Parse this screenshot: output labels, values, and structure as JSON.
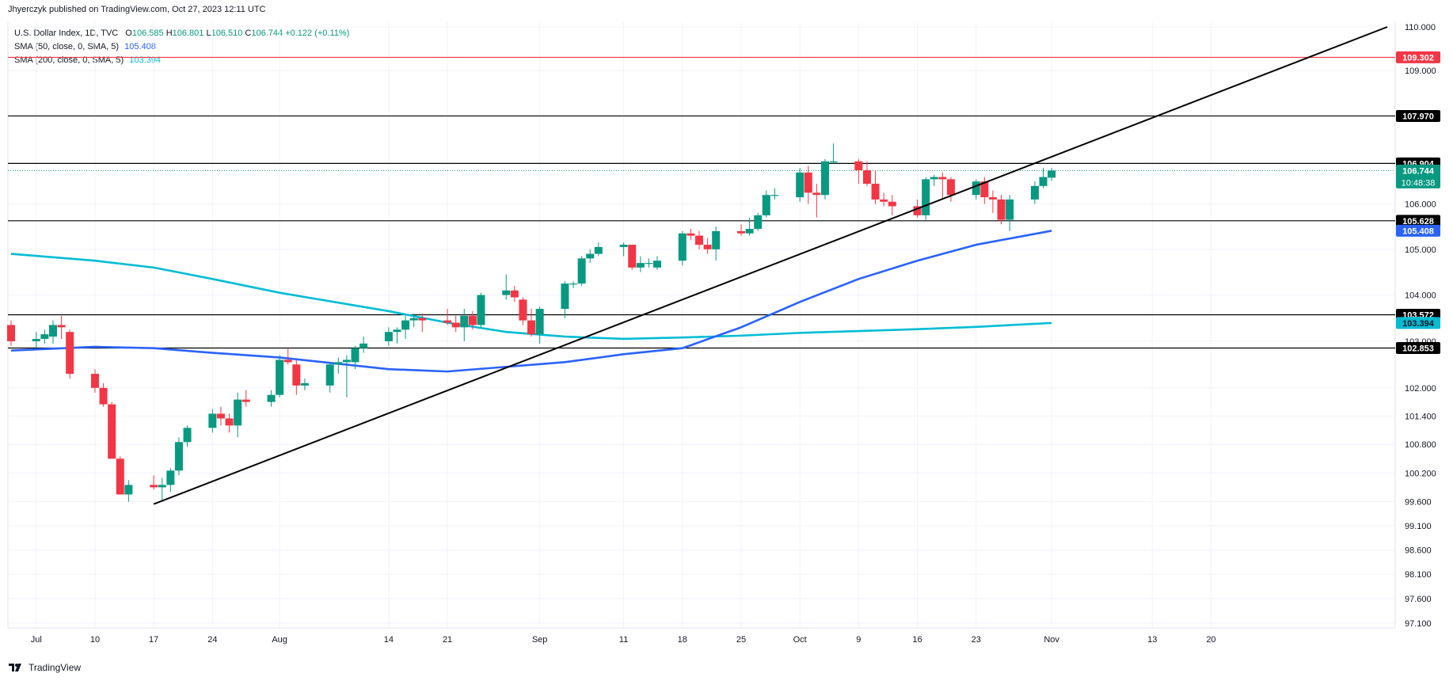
{
  "header": {
    "publisher": "Jhyerczyk published on TradingView.com, Oct 27, 2023 12:11 UTC"
  },
  "legend": {
    "instrument": "U.S. Dollar Index, 1D, TVC",
    "ohlc": {
      "open_label": "O",
      "open": "106.585",
      "high_label": "H",
      "high": "106.801",
      "low_label": "L",
      "low": "106.510",
      "close_label": "C",
      "close": "106.744",
      "change": "+0.122 (+0.11%)"
    },
    "sma50": {
      "label": "SMA (50, close, 0, SMA, 5)",
      "value": "105.408",
      "color": "#2962ff"
    },
    "sma200": {
      "label": "SMA (200, close, 0, SMA, 5)",
      "value": "103.394",
      "color": "#00bcd4"
    }
  },
  "footer": {
    "brand": "TradingView"
  },
  "colors": {
    "up": "#089981",
    "down": "#f23645",
    "sma50": "#2962ff",
    "sma200": "#00bcd4",
    "hline": "#000000",
    "red_hline": "#f23645",
    "grid": "#f0f3fa",
    "axis_text": "#131722"
  },
  "chart_data": {
    "type": "candlestick",
    "y_scale": "log",
    "ylim": [
      97.1,
      110.0
    ],
    "price_ticks": [
      "110.000",
      "109.000",
      "106.000",
      "105.000",
      "104.000",
      "103.000",
      "102.000",
      "101.400",
      "100.800",
      "100.200",
      "99.600",
      "99.100",
      "98.600",
      "98.100",
      "97.600",
      "97.100"
    ],
    "x_tick_labels": [
      "Jul",
      "10",
      "17",
      "24",
      "Aug",
      "14",
      "21",
      "Sep",
      "11",
      "18",
      "25",
      "Oct",
      "9",
      "16",
      "23",
      "Nov",
      "13",
      "20"
    ],
    "x_tick_dates": [
      "2023-07-03",
      "2023-07-10",
      "2023-07-17",
      "2023-07-24",
      "2023-08-01",
      "2023-08-14",
      "2023-08-21",
      "2023-09-01",
      "2023-09-11",
      "2023-09-18",
      "2023-09-25",
      "2023-10-02",
      "2023-10-09",
      "2023-10-16",
      "2023-10-23",
      "2023-11-01",
      "2023-11-13",
      "2023-11-20"
    ],
    "candles": [
      {
        "date": "2023-06-30",
        "o": 103.35,
        "h": 103.45,
        "l": 102.9,
        "c": 103.0
      },
      {
        "date": "2023-07-03",
        "o": 103.0,
        "h": 103.2,
        "l": 102.85,
        "c": 103.05
      },
      {
        "date": "2023-07-04",
        "o": 103.05,
        "h": 103.25,
        "l": 102.95,
        "c": 103.15
      },
      {
        "date": "2023-07-05",
        "o": 103.1,
        "h": 103.45,
        "l": 102.95,
        "c": 103.35
      },
      {
        "date": "2023-07-06",
        "o": 103.35,
        "h": 103.55,
        "l": 103.05,
        "c": 103.3
      },
      {
        "date": "2023-07-07",
        "o": 103.2,
        "h": 103.25,
        "l": 102.2,
        "c": 102.3
      },
      {
        "date": "2023-07-10",
        "o": 102.3,
        "h": 102.4,
        "l": 101.9,
        "c": 102.0
      },
      {
        "date": "2023-07-11",
        "o": 102.0,
        "h": 102.1,
        "l": 101.6,
        "c": 101.65
      },
      {
        "date": "2023-07-12",
        "o": 101.65,
        "h": 101.7,
        "l": 100.5,
        "c": 100.5
      },
      {
        "date": "2023-07-13",
        "o": 100.5,
        "h": 100.55,
        "l": 99.75,
        "c": 99.75
      },
      {
        "date": "2023-07-14",
        "o": 99.75,
        "h": 100.05,
        "l": 99.6,
        "c": 99.95
      },
      {
        "date": "2023-07-17",
        "o": 99.95,
        "h": 100.15,
        "l": 99.85,
        "c": 99.9
      },
      {
        "date": "2023-07-18",
        "o": 99.9,
        "h": 100.1,
        "l": 99.6,
        "c": 99.95
      },
      {
        "date": "2023-07-19",
        "o": 99.95,
        "h": 100.3,
        "l": 99.8,
        "c": 100.25
      },
      {
        "date": "2023-07-20",
        "o": 100.25,
        "h": 100.95,
        "l": 100.15,
        "c": 100.85
      },
      {
        "date": "2023-07-21",
        "o": 100.85,
        "h": 101.2,
        "l": 100.75,
        "c": 101.15
      },
      {
        "date": "2023-07-24",
        "o": 101.15,
        "h": 101.55,
        "l": 101.05,
        "c": 101.45
      },
      {
        "date": "2023-07-25",
        "o": 101.45,
        "h": 101.6,
        "l": 101.2,
        "c": 101.35
      },
      {
        "date": "2023-07-26",
        "o": 101.35,
        "h": 101.45,
        "l": 101.05,
        "c": 101.2
      },
      {
        "date": "2023-07-27",
        "o": 101.2,
        "h": 101.9,
        "l": 100.95,
        "c": 101.75
      },
      {
        "date": "2023-07-28",
        "o": 101.75,
        "h": 101.95,
        "l": 101.6,
        "c": 101.7
      },
      {
        "date": "2023-07-31",
        "o": 101.7,
        "h": 101.95,
        "l": 101.6,
        "c": 101.85
      },
      {
        "date": "2023-08-01",
        "o": 101.85,
        "h": 102.7,
        "l": 101.8,
        "c": 102.6
      },
      {
        "date": "2023-08-02",
        "o": 102.6,
        "h": 102.85,
        "l": 102.5,
        "c": 102.55
      },
      {
        "date": "2023-08-03",
        "o": 102.5,
        "h": 102.6,
        "l": 101.85,
        "c": 102.05
      },
      {
        "date": "2023-08-04",
        "o": 102.05,
        "h": 102.2,
        "l": 101.95,
        "c": 102.1
      },
      {
        "date": "2023-08-07",
        "o": 102.05,
        "h": 102.55,
        "l": 101.9,
        "c": 102.5
      },
      {
        "date": "2023-08-08",
        "o": 102.5,
        "h": 102.65,
        "l": 102.3,
        "c": 102.55
      },
      {
        "date": "2023-08-09",
        "o": 102.55,
        "h": 102.7,
        "l": 101.8,
        "c": 102.6
      },
      {
        "date": "2023-08-10",
        "o": 102.55,
        "h": 102.9,
        "l": 102.4,
        "c": 102.85
      },
      {
        "date": "2023-08-11",
        "o": 102.85,
        "h": 103.1,
        "l": 102.75,
        "c": 102.95
      },
      {
        "date": "2023-08-14",
        "o": 103.0,
        "h": 103.3,
        "l": 102.9,
        "c": 103.2
      },
      {
        "date": "2023-08-15",
        "o": 103.2,
        "h": 103.3,
        "l": 102.95,
        "c": 103.25
      },
      {
        "date": "2023-08-16",
        "o": 103.25,
        "h": 103.55,
        "l": 103.05,
        "c": 103.45
      },
      {
        "date": "2023-08-17",
        "o": 103.45,
        "h": 103.6,
        "l": 103.3,
        "c": 103.5
      },
      {
        "date": "2023-08-18",
        "o": 103.5,
        "h": 103.6,
        "l": 103.2,
        "c": 103.45
      },
      {
        "date": "2023-08-21",
        "o": 103.45,
        "h": 103.7,
        "l": 103.35,
        "c": 103.4
      },
      {
        "date": "2023-08-22",
        "o": 103.4,
        "h": 103.55,
        "l": 103.2,
        "c": 103.3
      },
      {
        "date": "2023-08-23",
        "o": 103.3,
        "h": 103.7,
        "l": 103.0,
        "c": 103.55
      },
      {
        "date": "2023-08-24",
        "o": 103.55,
        "h": 103.65,
        "l": 103.25,
        "c": 103.35
      },
      {
        "date": "2023-08-25",
        "o": 103.35,
        "h": 104.05,
        "l": 103.3,
        "c": 104.0
      },
      {
        "date": "2023-08-28",
        "o": 104.0,
        "h": 104.45,
        "l": 103.9,
        "c": 104.1
      },
      {
        "date": "2023-08-29",
        "o": 104.1,
        "h": 104.2,
        "l": 103.85,
        "c": 103.95
      },
      {
        "date": "2023-08-30",
        "o": 103.9,
        "h": 103.95,
        "l": 103.35,
        "c": 103.45
      },
      {
        "date": "2023-08-31",
        "o": 103.45,
        "h": 103.7,
        "l": 103.1,
        "c": 103.15
      },
      {
        "date": "2023-09-01",
        "o": 103.15,
        "h": 103.75,
        "l": 102.95,
        "c": 103.7
      },
      {
        "date": "2023-09-04",
        "o": 103.7,
        "h": 104.3,
        "l": 103.5,
        "c": 104.25
      },
      {
        "date": "2023-09-05",
        "o": 104.25,
        "h": 104.3,
        "l": 104.15,
        "c": 104.25
      },
      {
        "date": "2023-09-06",
        "o": 104.25,
        "h": 104.85,
        "l": 104.2,
        "c": 104.8
      },
      {
        "date": "2023-09-07",
        "o": 104.8,
        "h": 105.0,
        "l": 104.7,
        "c": 104.9
      },
      {
        "date": "2023-09-08",
        "o": 104.9,
        "h": 105.15,
        "l": 104.85,
        "c": 105.05
      },
      {
        "date": "2023-09-11",
        "o": 105.05,
        "h": 105.15,
        "l": 104.85,
        "c": 105.1
      },
      {
        "date": "2023-09-12",
        "o": 105.1,
        "h": 105.1,
        "l": 104.55,
        "c": 104.6
      },
      {
        "date": "2023-09-13",
        "o": 104.6,
        "h": 104.85,
        "l": 104.5,
        "c": 104.7
      },
      {
        "date": "2023-09-14",
        "o": 104.7,
        "h": 104.8,
        "l": 104.6,
        "c": 104.7
      },
      {
        "date": "2023-09-15",
        "o": 104.6,
        "h": 104.85,
        "l": 104.55,
        "c": 104.75
      },
      {
        "date": "2023-09-18",
        "o": 104.75,
        "h": 105.4,
        "l": 104.65,
        "c": 105.35
      },
      {
        "date": "2023-09-19",
        "o": 105.35,
        "h": 105.45,
        "l": 105.2,
        "c": 105.3
      },
      {
        "date": "2023-09-20",
        "o": 105.3,
        "h": 105.4,
        "l": 105.0,
        "c": 105.1
      },
      {
        "date": "2023-09-21",
        "o": 105.1,
        "h": 105.25,
        "l": 104.9,
        "c": 105.0
      },
      {
        "date": "2023-09-22",
        "o": 105.0,
        "h": 105.5,
        "l": 104.75,
        "c": 105.4
      },
      {
        "date": "2023-09-25",
        "o": 105.4,
        "h": 105.55,
        "l": 105.3,
        "c": 105.35
      },
      {
        "date": "2023-09-26",
        "o": 105.35,
        "h": 105.7,
        "l": 105.3,
        "c": 105.45
      },
      {
        "date": "2023-09-27",
        "o": 105.45,
        "h": 105.8,
        "l": 105.4,
        "c": 105.75
      },
      {
        "date": "2023-09-28",
        "o": 105.75,
        "h": 106.3,
        "l": 105.7,
        "c": 106.2
      },
      {
        "date": "2023-09-29",
        "o": 106.2,
        "h": 106.35,
        "l": 106.1,
        "c": 106.2
      },
      {
        "date": "2023-10-02",
        "o": 106.15,
        "h": 106.8,
        "l": 106.05,
        "c": 106.7
      },
      {
        "date": "2023-10-03",
        "o": 106.7,
        "h": 106.85,
        "l": 106.0,
        "c": 106.25
      },
      {
        "date": "2023-10-04",
        "o": 106.25,
        "h": 106.45,
        "l": 105.7,
        "c": 106.2
      },
      {
        "date": "2023-10-05",
        "o": 106.2,
        "h": 107.0,
        "l": 106.1,
        "c": 106.95
      },
      {
        "date": "2023-10-06",
        "o": 106.95,
        "h": 107.35,
        "l": 106.9,
        "c": 106.95
      },
      {
        "date": "2023-10-09",
        "o": 106.95,
        "h": 107.0,
        "l": 106.45,
        "c": 106.75
      },
      {
        "date": "2023-10-10",
        "o": 106.75,
        "h": 106.95,
        "l": 106.4,
        "c": 106.45
      },
      {
        "date": "2023-10-11",
        "o": 106.45,
        "h": 106.75,
        "l": 106.0,
        "c": 106.1
      },
      {
        "date": "2023-10-12",
        "o": 106.1,
        "h": 106.25,
        "l": 105.95,
        "c": 106.05
      },
      {
        "date": "2023-10-13",
        "o": 106.05,
        "h": 106.2,
        "l": 105.75,
        "c": 105.95
      },
      {
        "date": "2023-10-16",
        "o": 105.95,
        "h": 106.1,
        "l": 105.7,
        "c": 105.75
      },
      {
        "date": "2023-10-17",
        "o": 105.75,
        "h": 106.6,
        "l": 105.65,
        "c": 106.55
      },
      {
        "date": "2023-10-18",
        "o": 106.55,
        "h": 106.65,
        "l": 106.4,
        "c": 106.6
      },
      {
        "date": "2023-10-19",
        "o": 106.6,
        "h": 106.7,
        "l": 106.1,
        "c": 106.55
      },
      {
        "date": "2023-10-20",
        "o": 106.55,
        "h": 106.6,
        "l": 106.05,
        "c": 106.2
      },
      {
        "date": "2023-10-23",
        "o": 106.2,
        "h": 106.55,
        "l": 106.1,
        "c": 106.5
      },
      {
        "date": "2023-10-24",
        "o": 106.5,
        "h": 106.6,
        "l": 106.0,
        "c": 106.15
      },
      {
        "date": "2023-10-25",
        "o": 106.15,
        "h": 106.3,
        "l": 105.8,
        "c": 106.1
      },
      {
        "date": "2023-10-26",
        "o": 106.1,
        "h": 106.2,
        "l": 105.55,
        "c": 105.65
      },
      {
        "date": "2023-10-27",
        "o": 105.65,
        "h": 106.2,
        "l": 105.4,
        "c": 106.1
      },
      {
        "date": "2023-10-30",
        "o": 106.1,
        "h": 106.5,
        "l": 106.0,
        "c": 106.4
      },
      {
        "date": "2023-10-31",
        "o": 106.4,
        "h": 106.8,
        "l": 106.35,
        "c": 106.6
      },
      {
        "date": "2023-11-01",
        "o": 106.585,
        "h": 106.801,
        "l": 106.51,
        "c": 106.744
      }
    ],
    "sma50_points": [
      {
        "date": "2023-06-30",
        "v": 102.8
      },
      {
        "date": "2023-07-10",
        "v": 102.88
      },
      {
        "date": "2023-07-17",
        "v": 102.85
      },
      {
        "date": "2023-07-24",
        "v": 102.75
      },
      {
        "date": "2023-08-01",
        "v": 102.65
      },
      {
        "date": "2023-08-14",
        "v": 102.4
      },
      {
        "date": "2023-08-21",
        "v": 102.35
      },
      {
        "date": "2023-08-28",
        "v": 102.45
      },
      {
        "date": "2023-09-04",
        "v": 102.55
      },
      {
        "date": "2023-09-11",
        "v": 102.72
      },
      {
        "date": "2023-09-18",
        "v": 102.85
      },
      {
        "date": "2023-09-25",
        "v": 103.3
      },
      {
        "date": "2023-10-02",
        "v": 103.85
      },
      {
        "date": "2023-10-09",
        "v": 104.35
      },
      {
        "date": "2023-10-16",
        "v": 104.75
      },
      {
        "date": "2023-10-23",
        "v": 105.1
      },
      {
        "date": "2023-11-01",
        "v": 105.408
      }
    ],
    "sma200_points": [
      {
        "date": "2023-06-30",
        "v": 104.9
      },
      {
        "date": "2023-07-10",
        "v": 104.75
      },
      {
        "date": "2023-07-17",
        "v": 104.6
      },
      {
        "date": "2023-07-24",
        "v": 104.35
      },
      {
        "date": "2023-08-01",
        "v": 104.05
      },
      {
        "date": "2023-08-14",
        "v": 103.65
      },
      {
        "date": "2023-08-21",
        "v": 103.4
      },
      {
        "date": "2023-08-28",
        "v": 103.2
      },
      {
        "date": "2023-09-04",
        "v": 103.1
      },
      {
        "date": "2023-09-11",
        "v": 103.05
      },
      {
        "date": "2023-09-18",
        "v": 103.08
      },
      {
        "date": "2023-09-25",
        "v": 103.12
      },
      {
        "date": "2023-10-02",
        "v": 103.18
      },
      {
        "date": "2023-10-09",
        "v": 103.22
      },
      {
        "date": "2023-10-16",
        "v": 103.26
      },
      {
        "date": "2023-10-23",
        "v": 103.31
      },
      {
        "date": "2023-11-01",
        "v": 103.394
      }
    ],
    "trendline": {
      "start": {
        "date": "2023-07-17",
        "v": 99.55
      },
      "end": {
        "date": "2023-12-11",
        "v": 110.0
      }
    },
    "horizontal_lines": [
      {
        "value": 109.302,
        "label": "109.302",
        "color": "#f23645"
      },
      {
        "value": 107.97,
        "label": "107.970",
        "color": "#000000"
      },
      {
        "value": 106.904,
        "label": "106.904",
        "color": "#000000"
      },
      {
        "value": 105.628,
        "label": "105.628",
        "color": "#000000"
      },
      {
        "value": 103.572,
        "label": "103.572",
        "color": "#000000"
      },
      {
        "value": 102.853,
        "label": "102.853",
        "color": "#000000"
      }
    ],
    "last_price": {
      "value": 106.744,
      "label": "106.744",
      "countdown": "10:48:38",
      "color": "#089981"
    },
    "sma_price_labels": [
      {
        "value": 105.408,
        "label": "105.408",
        "color": "#2962ff"
      },
      {
        "value": 103.394,
        "label": "103.394",
        "color": "#00bcd4"
      }
    ],
    "grid": true
  }
}
